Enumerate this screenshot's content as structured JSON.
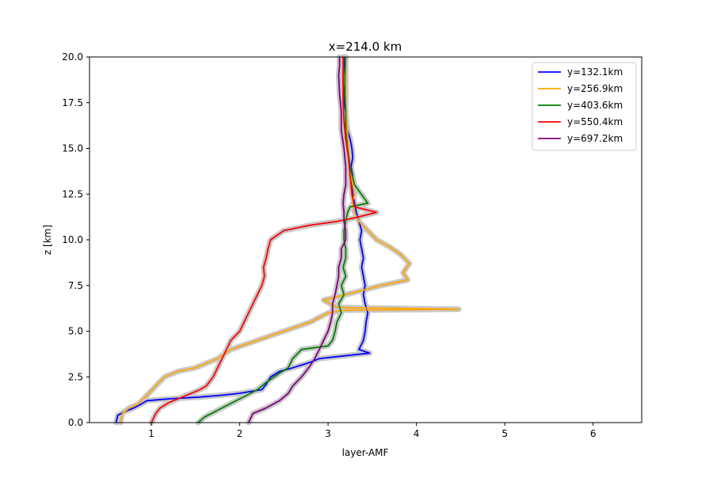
{
  "chart_data": {
    "type": "line",
    "title": "x=214.0 km",
    "xlabel": "layer-AMF",
    "ylabel": "z [km]",
    "xlim": [
      0.3,
      6.55
    ],
    "ylim": [
      0,
      20
    ],
    "x_ticks": [
      1,
      2,
      3,
      4,
      5,
      6
    ],
    "y_ticks": [
      0.0,
      2.5,
      5.0,
      7.5,
      10.0,
      12.5,
      15.0,
      17.5,
      20.0
    ],
    "x_tick_labels": [
      "1",
      "2",
      "3",
      "4",
      "5",
      "6"
    ],
    "y_tick_labels": [
      "0.0",
      "2.5",
      "5.0",
      "7.5",
      "10.0",
      "12.5",
      "15.0",
      "17.5",
      "20.0"
    ],
    "grid": false,
    "legend_position": "top-right",
    "uncertainty_color": "#c8c8c8",
    "series": [
      {
        "name": "y=132.1km",
        "color": "#0000ff",
        "points": [
          [
            0.6,
            0
          ],
          [
            0.62,
            0.4
          ],
          [
            0.7,
            0.6
          ],
          [
            0.8,
            0.8
          ],
          [
            0.88,
            1.0
          ],
          [
            0.95,
            1.2
          ],
          [
            1.2,
            1.3
          ],
          [
            1.55,
            1.4
          ],
          [
            1.8,
            1.5
          ],
          [
            2.0,
            1.6
          ],
          [
            2.25,
            1.8
          ],
          [
            2.3,
            2.1
          ],
          [
            2.35,
            2.5
          ],
          [
            2.45,
            2.8
          ],
          [
            2.6,
            3.0
          ],
          [
            2.8,
            3.3
          ],
          [
            2.9,
            3.5
          ],
          [
            3.47,
            3.8
          ],
          [
            3.35,
            4.0
          ],
          [
            3.4,
            4.5
          ],
          [
            3.42,
            5.0
          ],
          [
            3.43,
            5.5
          ],
          [
            3.45,
            6.0
          ],
          [
            3.42,
            6.5
          ],
          [
            3.4,
            7.0
          ],
          [
            3.42,
            7.5
          ],
          [
            3.4,
            8.0
          ],
          [
            3.38,
            8.5
          ],
          [
            3.4,
            9.0
          ],
          [
            3.38,
            9.5
          ],
          [
            3.36,
            10.0
          ],
          [
            3.38,
            10.5
          ],
          [
            3.35,
            11.0
          ],
          [
            3.32,
            11.5
          ],
          [
            3.3,
            12.0
          ],
          [
            3.28,
            12.5
          ],
          [
            3.27,
            13.0
          ],
          [
            3.28,
            13.5
          ],
          [
            3.26,
            14.0
          ],
          [
            3.28,
            14.5
          ],
          [
            3.27,
            15.0
          ],
          [
            3.25,
            15.5
          ],
          [
            3.22,
            16.0
          ],
          [
            3.2,
            16.5
          ],
          [
            3.2,
            17.0
          ],
          [
            3.18,
            17.5
          ],
          [
            3.18,
            18.0
          ],
          [
            3.17,
            18.5
          ],
          [
            3.17,
            19.0
          ],
          [
            3.18,
            19.5
          ],
          [
            3.18,
            20.0
          ]
        ]
      },
      {
        "name": "y=256.9km",
        "color": "#ffa500",
        "points": [
          [
            0.65,
            0
          ],
          [
            0.67,
            0.5
          ],
          [
            0.75,
            0.8
          ],
          [
            0.85,
            1.0
          ],
          [
            0.95,
            1.5
          ],
          [
            1.05,
            2.0
          ],
          [
            1.15,
            2.5
          ],
          [
            1.3,
            2.8
          ],
          [
            1.5,
            3.0
          ],
          [
            1.75,
            3.5
          ],
          [
            1.9,
            4.0
          ],
          [
            2.2,
            4.5
          ],
          [
            2.5,
            5.0
          ],
          [
            2.8,
            5.5
          ],
          [
            3.0,
            6.0
          ],
          [
            3.2,
            6.15
          ],
          [
            4.48,
            6.2
          ],
          [
            3.1,
            6.3
          ],
          [
            2.95,
            6.7
          ],
          [
            3.2,
            7.0
          ],
          [
            3.6,
            7.5
          ],
          [
            3.9,
            7.8
          ],
          [
            3.85,
            8.2
          ],
          [
            3.92,
            8.7
          ],
          [
            3.82,
            9.2
          ],
          [
            3.7,
            9.6
          ],
          [
            3.55,
            10.0
          ],
          [
            3.45,
            10.5
          ],
          [
            3.35,
            11.0
          ],
          [
            3.3,
            11.5
          ],
          [
            3.28,
            12.0
          ],
          [
            3.3,
            12.5
          ],
          [
            3.28,
            13.0
          ],
          [
            3.25,
            14.0
          ],
          [
            3.23,
            15.0
          ],
          [
            3.22,
            16.0
          ],
          [
            3.2,
            17.0
          ],
          [
            3.2,
            18.0
          ],
          [
            3.2,
            19.0
          ],
          [
            3.2,
            20.0
          ]
        ]
      },
      {
        "name": "y=403.6km",
        "color": "#008000",
        "points": [
          [
            1.53,
            0
          ],
          [
            1.6,
            0.3
          ],
          [
            1.8,
            0.8
          ],
          [
            2.0,
            1.3
          ],
          [
            2.2,
            1.8
          ],
          [
            2.3,
            2.2
          ],
          [
            2.45,
            2.7
          ],
          [
            2.55,
            3.0
          ],
          [
            2.6,
            3.5
          ],
          [
            2.7,
            4.0
          ],
          [
            3.0,
            4.2
          ],
          [
            3.05,
            4.5
          ],
          [
            3.08,
            5.0
          ],
          [
            3.1,
            5.5
          ],
          [
            3.15,
            6.0
          ],
          [
            3.12,
            6.5
          ],
          [
            3.18,
            7.0
          ],
          [
            3.15,
            7.5
          ],
          [
            3.2,
            8.0
          ],
          [
            3.17,
            8.5
          ],
          [
            3.2,
            9.0
          ],
          [
            3.2,
            9.5
          ],
          [
            3.18,
            10.0
          ],
          [
            3.18,
            10.5
          ],
          [
            3.2,
            11.0
          ],
          [
            3.22,
            11.5
          ],
          [
            3.25,
            11.8
          ],
          [
            3.45,
            12.0
          ],
          [
            3.3,
            13.0
          ],
          [
            3.25,
            14.0
          ],
          [
            3.22,
            15.0
          ],
          [
            3.2,
            16.0
          ],
          [
            3.2,
            17.0
          ],
          [
            3.19,
            18.0
          ],
          [
            3.19,
            19.0
          ],
          [
            3.2,
            20.0
          ]
        ]
      },
      {
        "name": "y=550.4km",
        "color": "#ff0000",
        "points": [
          [
            1.0,
            0
          ],
          [
            1.05,
            0.5
          ],
          [
            1.1,
            0.8
          ],
          [
            1.2,
            1.1
          ],
          [
            1.4,
            1.5
          ],
          [
            1.55,
            1.8
          ],
          [
            1.62,
            2.0
          ],
          [
            1.7,
            2.5
          ],
          [
            1.75,
            3.0
          ],
          [
            1.8,
            3.5
          ],
          [
            1.85,
            4.0
          ],
          [
            1.9,
            4.5
          ],
          [
            2.0,
            5.0
          ],
          [
            2.05,
            5.5
          ],
          [
            2.1,
            6.0
          ],
          [
            2.15,
            6.5
          ],
          [
            2.2,
            7.0
          ],
          [
            2.25,
            7.5
          ],
          [
            2.28,
            8.0
          ],
          [
            2.27,
            8.5
          ],
          [
            2.3,
            9.0
          ],
          [
            2.32,
            9.5
          ],
          [
            2.35,
            10.0
          ],
          [
            2.5,
            10.5
          ],
          [
            2.8,
            10.8
          ],
          [
            3.1,
            11.0
          ],
          [
            3.3,
            11.2
          ],
          [
            3.55,
            11.5
          ],
          [
            3.3,
            11.8
          ],
          [
            3.27,
            12.5
          ],
          [
            3.25,
            13.5
          ],
          [
            3.23,
            14.5
          ],
          [
            3.2,
            15.5
          ],
          [
            3.18,
            16.5
          ],
          [
            3.17,
            17.5
          ],
          [
            3.17,
            18.5
          ],
          [
            3.17,
            19.5
          ],
          [
            3.17,
            20.0
          ]
        ]
      },
      {
        "name": "y=697.2km",
        "color": "#800080",
        "points": [
          [
            2.1,
            0
          ],
          [
            2.15,
            0.5
          ],
          [
            2.3,
            0.8
          ],
          [
            2.45,
            1.2
          ],
          [
            2.55,
            1.6
          ],
          [
            2.6,
            2.0
          ],
          [
            2.7,
            2.5
          ],
          [
            2.78,
            3.0
          ],
          [
            2.85,
            3.5
          ],
          [
            2.9,
            4.0
          ],
          [
            2.95,
            4.5
          ],
          [
            3.0,
            5.0
          ],
          [
            3.03,
            5.5
          ],
          [
            3.05,
            6.0
          ],
          [
            3.05,
            6.5
          ],
          [
            3.08,
            7.0
          ],
          [
            3.1,
            7.5
          ],
          [
            3.12,
            8.0
          ],
          [
            3.12,
            8.5
          ],
          [
            3.15,
            9.0
          ],
          [
            3.15,
            9.5
          ],
          [
            3.2,
            10.0
          ],
          [
            3.2,
            10.5
          ],
          [
            3.18,
            11.0
          ],
          [
            3.18,
            11.5
          ],
          [
            3.17,
            12.0
          ],
          [
            3.18,
            12.5
          ],
          [
            3.2,
            13.0
          ],
          [
            3.2,
            14.0
          ],
          [
            3.18,
            15.0
          ],
          [
            3.15,
            16.0
          ],
          [
            3.15,
            17.0
          ],
          [
            3.13,
            18.0
          ],
          [
            3.12,
            19.0
          ],
          [
            3.13,
            19.5
          ],
          [
            3.13,
            20.0
          ]
        ]
      }
    ]
  }
}
